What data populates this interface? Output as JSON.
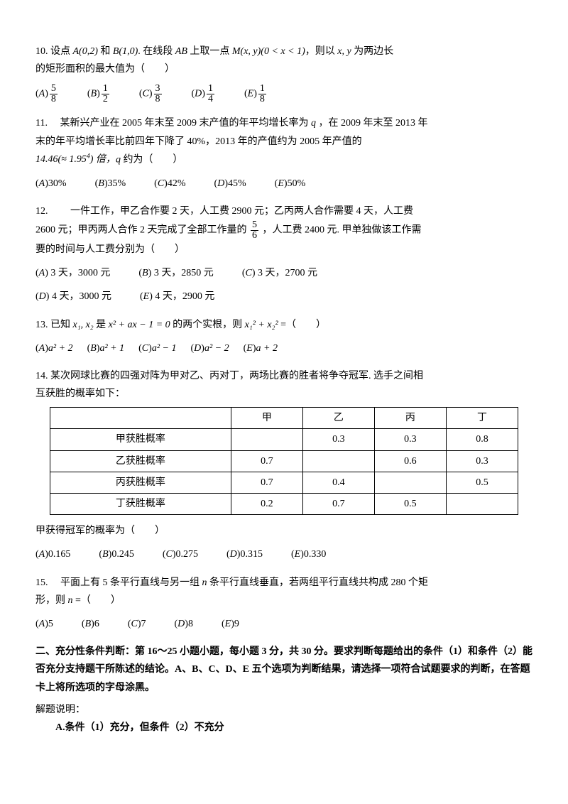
{
  "q10": {
    "num": "10.",
    "text_parts": {
      "pre": "设点 ",
      "A": "A(0,2)",
      "mid1": " 和 ",
      "B": "B(1,0)",
      "mid2": ". 在线段 ",
      "seg": "AB",
      "mid3": " 上取一点 ",
      "M": "M(x, y)(0 < x < 1)",
      "mid4": "，则以 ",
      "vars": "x, y",
      "mid5": " 为两边长"
    },
    "line2": "的矩形面积的最大值为（　　）",
    "options": {
      "A": {
        "num": "5",
        "den": "8"
      },
      "B": {
        "num": "1",
        "den": "2"
      },
      "C": {
        "num": "3",
        "den": "8"
      },
      "D": {
        "num": "1",
        "den": "4"
      },
      "E": {
        "num": "1",
        "den": "8"
      }
    }
  },
  "q11": {
    "num": "11.",
    "line1a": "某新兴产业在 2005 年末至 2009 末产值的年平均增长率为 ",
    "qvar": "q",
    "line1b": " ，在 2009 年末至 2013 年",
    "line2": "末的年平均增长率比前四年下降了 40%，2013 年的产值约为 2005 年产值的",
    "line3a": "14.46(≈ 1.95",
    "line3sup": "4",
    "line3b": ") 倍，",
    "line3q": "q",
    "line3c": " 约为（　　）",
    "options": {
      "A": "30%",
      "B": "35%",
      "C": "42%",
      "D": "45%",
      "E": "50%"
    }
  },
  "q12": {
    "num": "12.",
    "line1": "一件工作，甲乙合作要 2 天，人工费 2900 元；乙丙两人合作需要 4 天，人工费",
    "line2a": "2600 元；甲丙两人合作 2 天完成了全部工作量的 ",
    "frac": {
      "num": "5",
      "den": "6"
    },
    "line2b": " ，人工费 2400 元.  甲单独做该工作需",
    "line3": "要的时间与人工费分别为（　　）",
    "row1": {
      "A": "3 天，3000 元",
      "B": "3 天，2850 元",
      "C": "3 天，2700 元"
    },
    "row2": {
      "D": "4 天，3000 元",
      "E": "4 天，2900 元"
    }
  },
  "q13": {
    "num": "13.",
    "pre": "已知 ",
    "x12": "x₁, x₂",
    "mid": " 是 ",
    "eq": "x² + ax − 1 = 0",
    "tail": " 的两个实根，则 ",
    "expr": "x₁² + x₂²",
    "end": " =（　　）",
    "options": {
      "A": "a² + 2",
      "B": "a² + 1",
      "C": "a² − 1",
      "D": "a² − 2",
      "E": "a + 2"
    }
  },
  "q14": {
    "num": "14.",
    "line1": "某次网球比赛的四强对阵为甲对乙、丙对丁，两场比赛的胜者将争夺冠军. 选手之间相",
    "line2": "互获胜的概率如下：",
    "headers": [
      "",
      "甲",
      "乙",
      "丙",
      "丁"
    ],
    "rows": [
      [
        "甲获胜概率",
        "",
        "0.3",
        "0.3",
        "0.8"
      ],
      [
        "乙获胜概率",
        "0.7",
        "",
        "0.6",
        "0.3"
      ],
      [
        "丙获胜概率",
        "0.7",
        "0.4",
        "",
        "0.5"
      ],
      [
        "丁获胜概率",
        "0.2",
        "0.7",
        "0.5",
        ""
      ]
    ],
    "qline": "甲获得冠军的概率为（　　）",
    "options": {
      "A": "0.165",
      "B": "0.245",
      "C": "0.275",
      "D": "0.315",
      "E": "0.330"
    }
  },
  "q15": {
    "num": "15.",
    "line1a": "平面上有 5 条平行直线与另一组 ",
    "nvar": "n",
    "line1b": " 条平行直线垂直，若两组平行直线共构成 280 个矩",
    "line2a": "形，则 ",
    "line2n": "n",
    "line2b": " =（　　）",
    "options": {
      "A": "5",
      "B": "6",
      "C": "7",
      "D": "8",
      "E": "9"
    }
  },
  "section2": {
    "head": "二、充分性条件判断：第 16～25 小题小题，每小题 3 分，共 30 分。要求判断每题给出的条件（1）和条件（2）能否充分支持题干所陈述的结论。A、B、C、D、E 五个选项为判断结果，请选择一项符合试题要求的判断，在答题卡上将所选项的字母涂黑。",
    "expl_label": "解题说明：",
    "cond_a": "A.条件（1）充分，但条件（2）不充分"
  }
}
